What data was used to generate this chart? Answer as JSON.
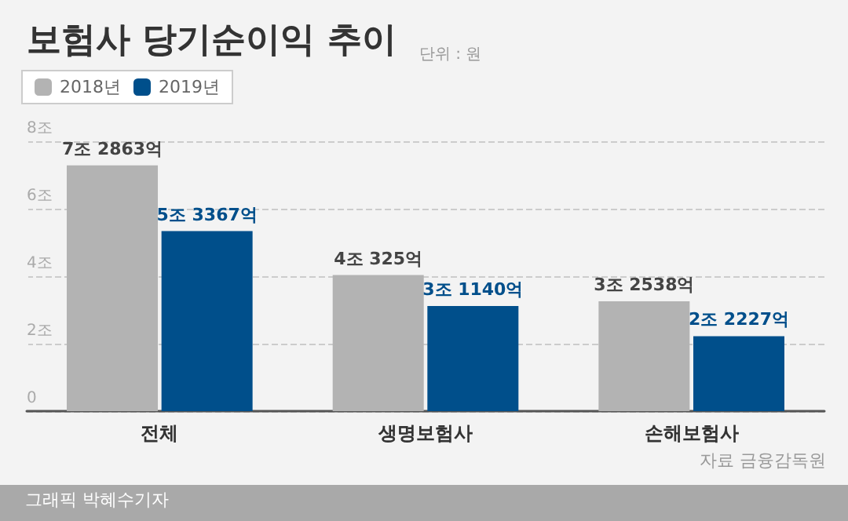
{
  "chart_data": {
    "type": "bar",
    "title": "보험사 당기순이익 추이",
    "subtitle": "단위 : 원",
    "categories": [
      "전체",
      "생명보험사",
      "손해보험사"
    ],
    "series": [
      {
        "name": "2018년",
        "color": "#b3b3b3",
        "values": [
          7.2863,
          4.0325,
          3.2538
        ],
        "value_labels": [
          "7조 2863억",
          "4조 325억",
          "3조 2538억"
        ]
      },
      {
        "name": "2019년",
        "color": "#004f8b",
        "values": [
          5.3367,
          3.114,
          2.2227
        ],
        "value_labels": [
          "5조 3367억",
          "3조 1140억",
          "2조 2227억"
        ]
      }
    ],
    "ylim": [
      0,
      8
    ],
    "yticks": [
      0,
      {
        "value": 2,
        "label": "2조"
      },
      {
        "value": 4,
        "label": "4조"
      },
      {
        "value": 6,
        "label": "6조"
      },
      {
        "value": 8,
        "label": "8조"
      }
    ],
    "grid": "y",
    "legend": "top left",
    "annotations": [
      "자료 금융감독원",
      "그래픽 박혜수기자"
    ]
  }
}
